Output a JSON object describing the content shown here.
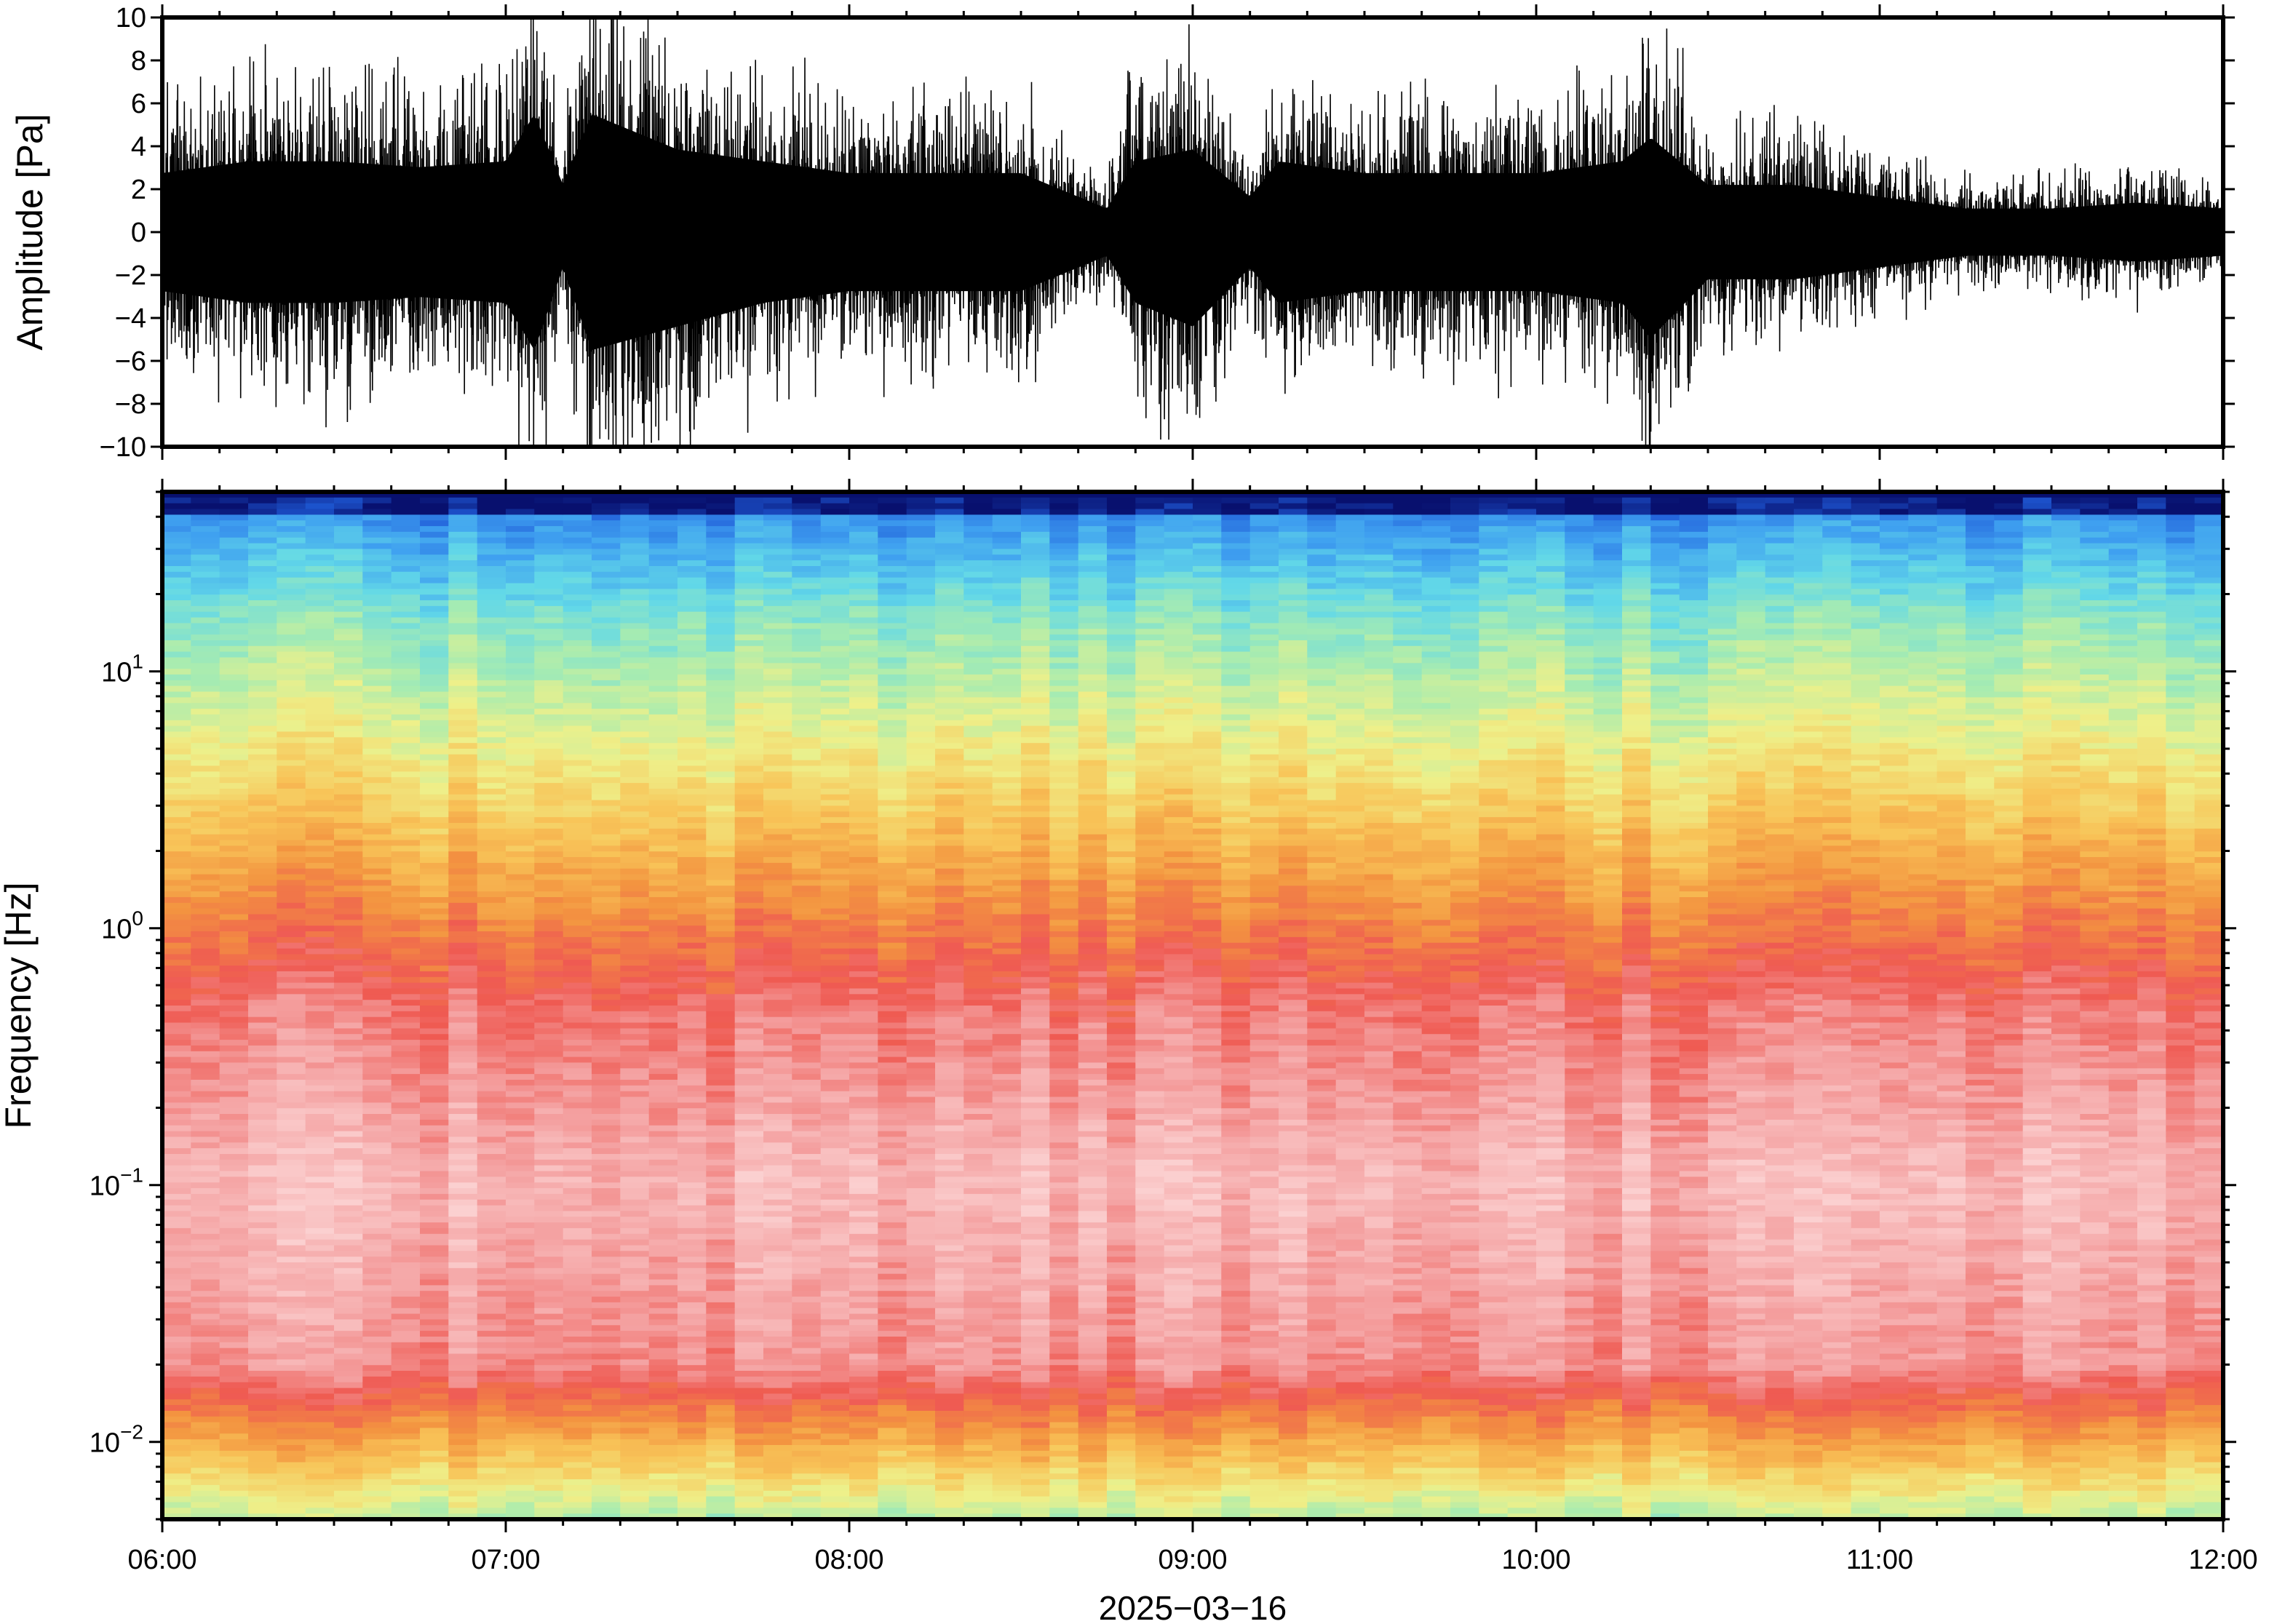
{
  "chart_data": [
    {
      "type": "line",
      "ylabel": "Amplitude [Pa]",
      "ylim": [
        -10,
        10
      ],
      "yticks": [
        "10",
        "8",
        "6",
        "4",
        "2",
        "0",
        "−2",
        "−4",
        "−6",
        "−8",
        "−10"
      ],
      "xlim": [
        "06:00",
        "12:00"
      ],
      "envelope": {
        "description_units": "Pa",
        "times": [
          "06:00",
          "06:15",
          "06:30",
          "06:45",
          "07:00",
          "07:05",
          "07:10",
          "07:15",
          "07:30",
          "07:45",
          "08:00",
          "08:15",
          "08:30",
          "08:45",
          "08:50",
          "09:00",
          "09:10",
          "09:15",
          "09:30",
          "09:45",
          "10:00",
          "10:15",
          "10:20",
          "10:30",
          "10:45",
          "11:00",
          "11:15",
          "11:30",
          "11:45",
          "12:00"
        ],
        "upper": [
          5,
          6,
          6,
          5.5,
          6,
          10,
          4,
          10,
          7,
          6,
          5,
          5,
          5,
          2,
          6,
          7,
          3,
          6,
          5,
          5,
          5,
          6,
          8,
          4,
          4,
          3,
          2,
          2,
          2.5,
          2
        ],
        "lower": [
          -5,
          -6,
          -6,
          -5.5,
          -6,
          -10,
          -3,
          -10,
          -8,
          -6,
          -5,
          -5,
          -5,
          -2,
          -6,
          -8,
          -3,
          -6,
          -5,
          -5,
          -5,
          -6,
          -9,
          -4,
          -4,
          -3,
          -2,
          -2,
          -2.5,
          -2
        ]
      }
    },
    {
      "type": "heatmap",
      "ylabel": "Frequency [Hz]",
      "yscale": "log",
      "ylim": [
        0.005,
        50
      ],
      "yticks": [
        {
          "value": 10,
          "base": "10",
          "exp": "1"
        },
        {
          "value": 1,
          "base": "10",
          "exp": "0"
        },
        {
          "value": 0.1,
          "base": "10",
          "exp": "−1"
        },
        {
          "value": 0.01,
          "base": "10",
          "exp": "−2"
        }
      ],
      "xlabel": "2025−03−16",
      "xticks": [
        "06:00",
        "07:00",
        "08:00",
        "09:00",
        "10:00",
        "11:00",
        "12:00"
      ],
      "colormap": [
        "#08106e",
        "#1f5bd8",
        "#3fa0f0",
        "#62d8e8",
        "#a8ecb0",
        "#eef08a",
        "#f8c458",
        "#f39440",
        "#ef5a52",
        "#f4a0a0",
        "#fbd0d0"
      ],
      "color_bands_top_to_bottom": [
        "dark-blue",
        "blue",
        "cyan",
        "yellow-green",
        "orange",
        "red",
        "pink",
        "red",
        "orange-yellow"
      ]
    }
  ]
}
